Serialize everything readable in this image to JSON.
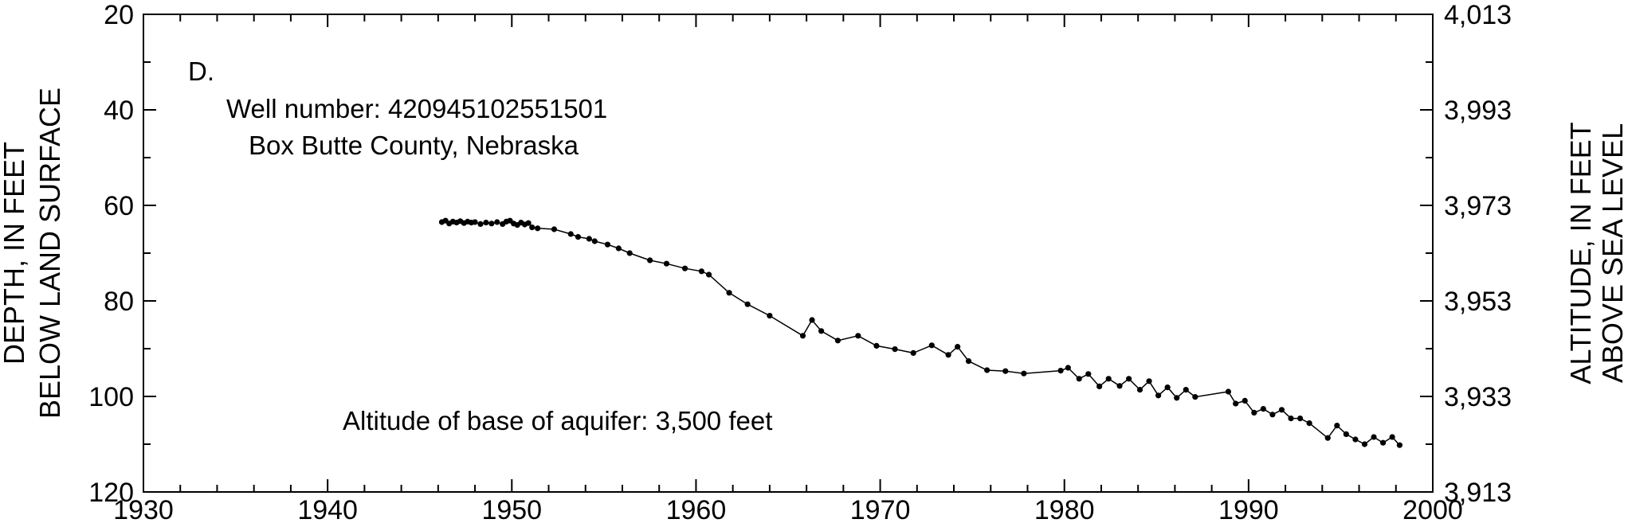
{
  "chart_data": {
    "type": "line",
    "panel_label": "D.",
    "annotations": {
      "well": "Well number: 420945102551501",
      "county": "Box Butte County, Nebraska",
      "base": "Altitude of base of aquifer: 3,500 feet"
    },
    "ylabel_left": [
      "DEPTH, IN FEET",
      "BELOW LAND SURFACE"
    ],
    "ylabel_right": [
      "ALTITUDE, IN FEET",
      "ABOVE SEA LEVEL"
    ],
    "xlim": [
      1930,
      2000
    ],
    "ylim": [
      20,
      120
    ],
    "y_inverted": true,
    "x_ticks": [
      1930,
      1940,
      1950,
      1960,
      1970,
      1980,
      1990,
      2000
    ],
    "x_tick_labels": [
      "1930",
      "1940",
      "1950",
      "1960",
      "1970",
      "1980",
      "1990",
      "2000"
    ],
    "y_ticks": [
      20,
      40,
      60,
      80,
      100,
      120
    ],
    "y_tick_labels": [
      "20",
      "40",
      "60",
      "80",
      "100",
      "120"
    ],
    "y2_ticks": [
      3913,
      3933,
      3953,
      3973,
      3993,
      4013
    ],
    "y2_tick_labels": [
      "3,913",
      "3,933",
      "3,953",
      "3,973",
      "3,993",
      "4,013"
    ],
    "y2_lim": [
      3913,
      4013
    ],
    "grid": false,
    "series": [
      {
        "marker": "dot",
        "color": "#000000",
        "x": [
          1946.2,
          1946.4,
          1946.6,
          1946.8,
          1947.0,
          1947.2,
          1947.4,
          1947.6,
          1947.8,
          1948.0,
          1948.3,
          1948.6,
          1948.9,
          1949.2,
          1949.5,
          1949.7,
          1949.9,
          1950.1,
          1950.3,
          1950.5,
          1950.7,
          1950.9,
          1951.1,
          1951.4,
          1952.3,
          1953.2,
          1953.6,
          1954.2,
          1954.5,
          1955.2,
          1955.8,
          1956.4,
          1957.5,
          1958.4,
          1959.4,
          1960.3,
          1960.7,
          1961.8,
          1962.8,
          1964.0,
          1965.8,
          1966.3,
          1966.8,
          1967.7,
          1968.8,
          1969.8,
          1970.8,
          1971.8,
          1972.8,
          1973.7,
          1974.2,
          1974.8,
          1975.8,
          1976.8,
          1977.8,
          1979.8,
          1980.2,
          1980.8,
          1981.3,
          1981.9,
          1982.4,
          1983.0,
          1983.5,
          1984.1,
          1984.6,
          1985.1,
          1985.6,
          1986.1,
          1986.6,
          1987.1,
          1988.9,
          1989.3,
          1989.8,
          1990.3,
          1990.8,
          1991.3,
          1991.8,
          1992.3,
          1992.8,
          1993.3,
          1994.3,
          1994.8,
          1995.3,
          1995.8,
          1996.3,
          1996.8,
          1997.3,
          1997.8,
          1998.2
        ],
        "y": [
          63.5,
          63.2,
          63.8,
          63.4,
          63.6,
          63.3,
          63.7,
          63.4,
          63.6,
          63.5,
          63.9,
          63.6,
          63.8,
          63.5,
          63.9,
          63.4,
          63.2,
          63.8,
          64.1,
          63.6,
          64.0,
          63.7,
          64.6,
          64.8,
          65.0,
          66.0,
          66.6,
          67.0,
          67.5,
          68.2,
          69.0,
          70.0,
          71.5,
          72.2,
          73.2,
          73.8,
          74.5,
          78.3,
          80.7,
          83.1,
          87.3,
          84.0,
          86.3,
          88.3,
          87.3,
          89.4,
          90.1,
          90.9,
          89.3,
          91.3,
          89.6,
          92.6,
          94.5,
          94.7,
          95.2,
          94.6,
          94.0,
          96.3,
          95.3,
          97.9,
          96.3,
          97.8,
          96.3,
          98.6,
          96.8,
          99.8,
          98.1,
          100.3,
          98.6,
          100.1,
          99.0,
          101.5,
          100.9,
          103.4,
          102.6,
          103.8,
          102.8,
          104.6,
          104.6,
          105.6,
          108.7,
          106.1,
          107.9,
          109.0,
          110.0,
          108.5,
          109.7,
          108.5,
          110.2
        ]
      }
    ]
  }
}
